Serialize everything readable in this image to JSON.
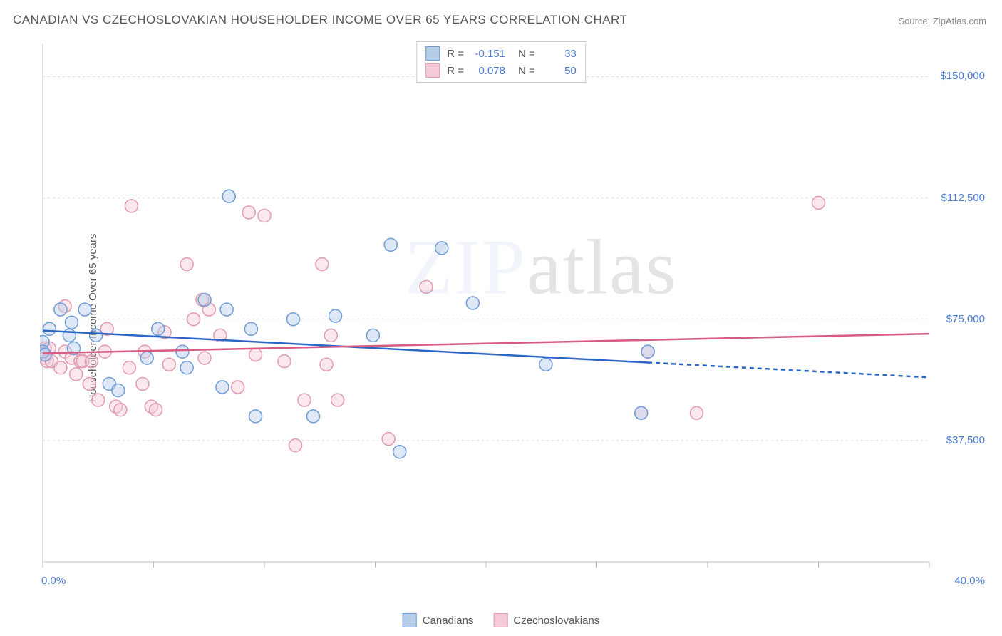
{
  "title": "CANADIAN VS CZECHOSLOVAKIAN HOUSEHOLDER INCOME OVER 65 YEARS CORRELATION CHART",
  "source": "Source: ZipAtlas.com",
  "watermark": {
    "left": "ZIP",
    "right": "atlas"
  },
  "ylabel": "Householder Income Over 65 years",
  "chart": {
    "type": "scatter",
    "background_color": "#ffffff",
    "grid_color": "#d8d8d8",
    "axis_color": "#bfbfbf",
    "tick_color": "#bfbfbf",
    "xlim": [
      0,
      40
    ],
    "ylim": [
      0,
      160000
    ],
    "x_label_min": "0.0%",
    "x_label_max": "40.0%",
    "xtick_positions": [
      0,
      5,
      10,
      15,
      20,
      25,
      30,
      35,
      40
    ],
    "yticks": [
      {
        "v": 37500,
        "label": "$37,500"
      },
      {
        "v": 75000,
        "label": "$75,000"
      },
      {
        "v": 112500,
        "label": "$112,500"
      },
      {
        "v": 150000,
        "label": "$150,000"
      }
    ],
    "marker_radius": 9,
    "marker_stroke_width": 1.5,
    "marker_fill_opacity": 0.45,
    "trend_line_width": 2.5,
    "trend_dash": "6 5",
    "series": [
      {
        "id": "canadians",
        "label": "Canadians",
        "stroke": "#6f9cd6",
        "fill": "#b6cdea",
        "line_color": "#2c66c4",
        "R": "-0.151",
        "N": "33",
        "trend": {
          "x1": 0,
          "y1": 71500,
          "x2": 40,
          "y2": 57000,
          "solid_until_x": 27.3
        },
        "points": [
          [
            0.0,
            68000
          ],
          [
            0.0,
            65000
          ],
          [
            0.1,
            64000
          ],
          [
            0.3,
            72000
          ],
          [
            0.8,
            78000
          ],
          [
            1.2,
            70000
          ],
          [
            1.3,
            74000
          ],
          [
            1.4,
            66000
          ],
          [
            1.9,
            78000
          ],
          [
            2.4,
            70000
          ],
          [
            3.0,
            55000
          ],
          [
            3.4,
            53000
          ],
          [
            4.7,
            63000
          ],
          [
            5.2,
            72000
          ],
          [
            6.3,
            65000
          ],
          [
            6.5,
            60000
          ],
          [
            7.3,
            81000
          ],
          [
            8.1,
            54000
          ],
          [
            8.3,
            78000
          ],
          [
            8.4,
            113000
          ],
          [
            9.4,
            72000
          ],
          [
            9.6,
            45000
          ],
          [
            11.3,
            75000
          ],
          [
            12.2,
            45000
          ],
          [
            13.2,
            76000
          ],
          [
            14.9,
            70000
          ],
          [
            15.7,
            98000
          ],
          [
            16.1,
            34000
          ],
          [
            18.0,
            97000
          ],
          [
            19.4,
            80000
          ],
          [
            22.7,
            61000
          ],
          [
            27.0,
            46000
          ],
          [
            27.3,
            65000
          ]
        ]
      },
      {
        "id": "czechoslovakians",
        "label": "Czechoslovakians",
        "stroke": "#e29aad",
        "fill": "#f4cbd6",
        "line_color": "#d85b83",
        "R": "0.078",
        "N": "50",
        "trend": {
          "x1": 0,
          "y1": 64500,
          "x2": 40,
          "y2": 70500,
          "solid_until_x": 40
        },
        "points": [
          [
            0.1,
            66000
          ],
          [
            0.1,
            63000
          ],
          [
            0.2,
            62000
          ],
          [
            0.3,
            66000
          ],
          [
            0.4,
            62000
          ],
          [
            0.8,
            60000
          ],
          [
            1.0,
            65000
          ],
          [
            1.0,
            79000
          ],
          [
            1.3,
            63000
          ],
          [
            1.5,
            58000
          ],
          [
            1.7,
            62000
          ],
          [
            1.8,
            62000
          ],
          [
            2.1,
            55000
          ],
          [
            2.2,
            62000
          ],
          [
            2.5,
            50000
          ],
          [
            2.8,
            65000
          ],
          [
            2.9,
            72000
          ],
          [
            3.3,
            48000
          ],
          [
            3.5,
            47000
          ],
          [
            3.9,
            60000
          ],
          [
            4.0,
            110000
          ],
          [
            4.5,
            55000
          ],
          [
            4.6,
            65000
          ],
          [
            4.9,
            48000
          ],
          [
            5.1,
            47000
          ],
          [
            5.7,
            61000
          ],
          [
            6.5,
            92000
          ],
          [
            6.8,
            75000
          ],
          [
            7.2,
            81000
          ],
          [
            7.3,
            63000
          ],
          [
            7.5,
            78000
          ],
          [
            8.0,
            70000
          ],
          [
            9.3,
            108000
          ],
          [
            9.6,
            64000
          ],
          [
            10.0,
            107000
          ],
          [
            10.9,
            62000
          ],
          [
            11.4,
            36000
          ],
          [
            12.6,
            92000
          ],
          [
            12.8,
            61000
          ],
          [
            13.0,
            70000
          ],
          [
            13.3,
            50000
          ],
          [
            15.6,
            38000
          ],
          [
            17.3,
            85000
          ],
          [
            27.0,
            46000
          ],
          [
            27.3,
            65000
          ],
          [
            29.5,
            46000
          ],
          [
            35.0,
            111000
          ],
          [
            5.5,
            71000
          ],
          [
            8.8,
            54000
          ],
          [
            11.8,
            50000
          ]
        ]
      }
    ],
    "legend_bottom": [
      {
        "label": "Canadians",
        "series": "canadians"
      },
      {
        "label": "Czechoslovakians",
        "series": "czechoslovakians"
      }
    ]
  },
  "label_colors": {
    "tick": "#4a7bd0",
    "text": "#555555",
    "source": "#888888"
  }
}
